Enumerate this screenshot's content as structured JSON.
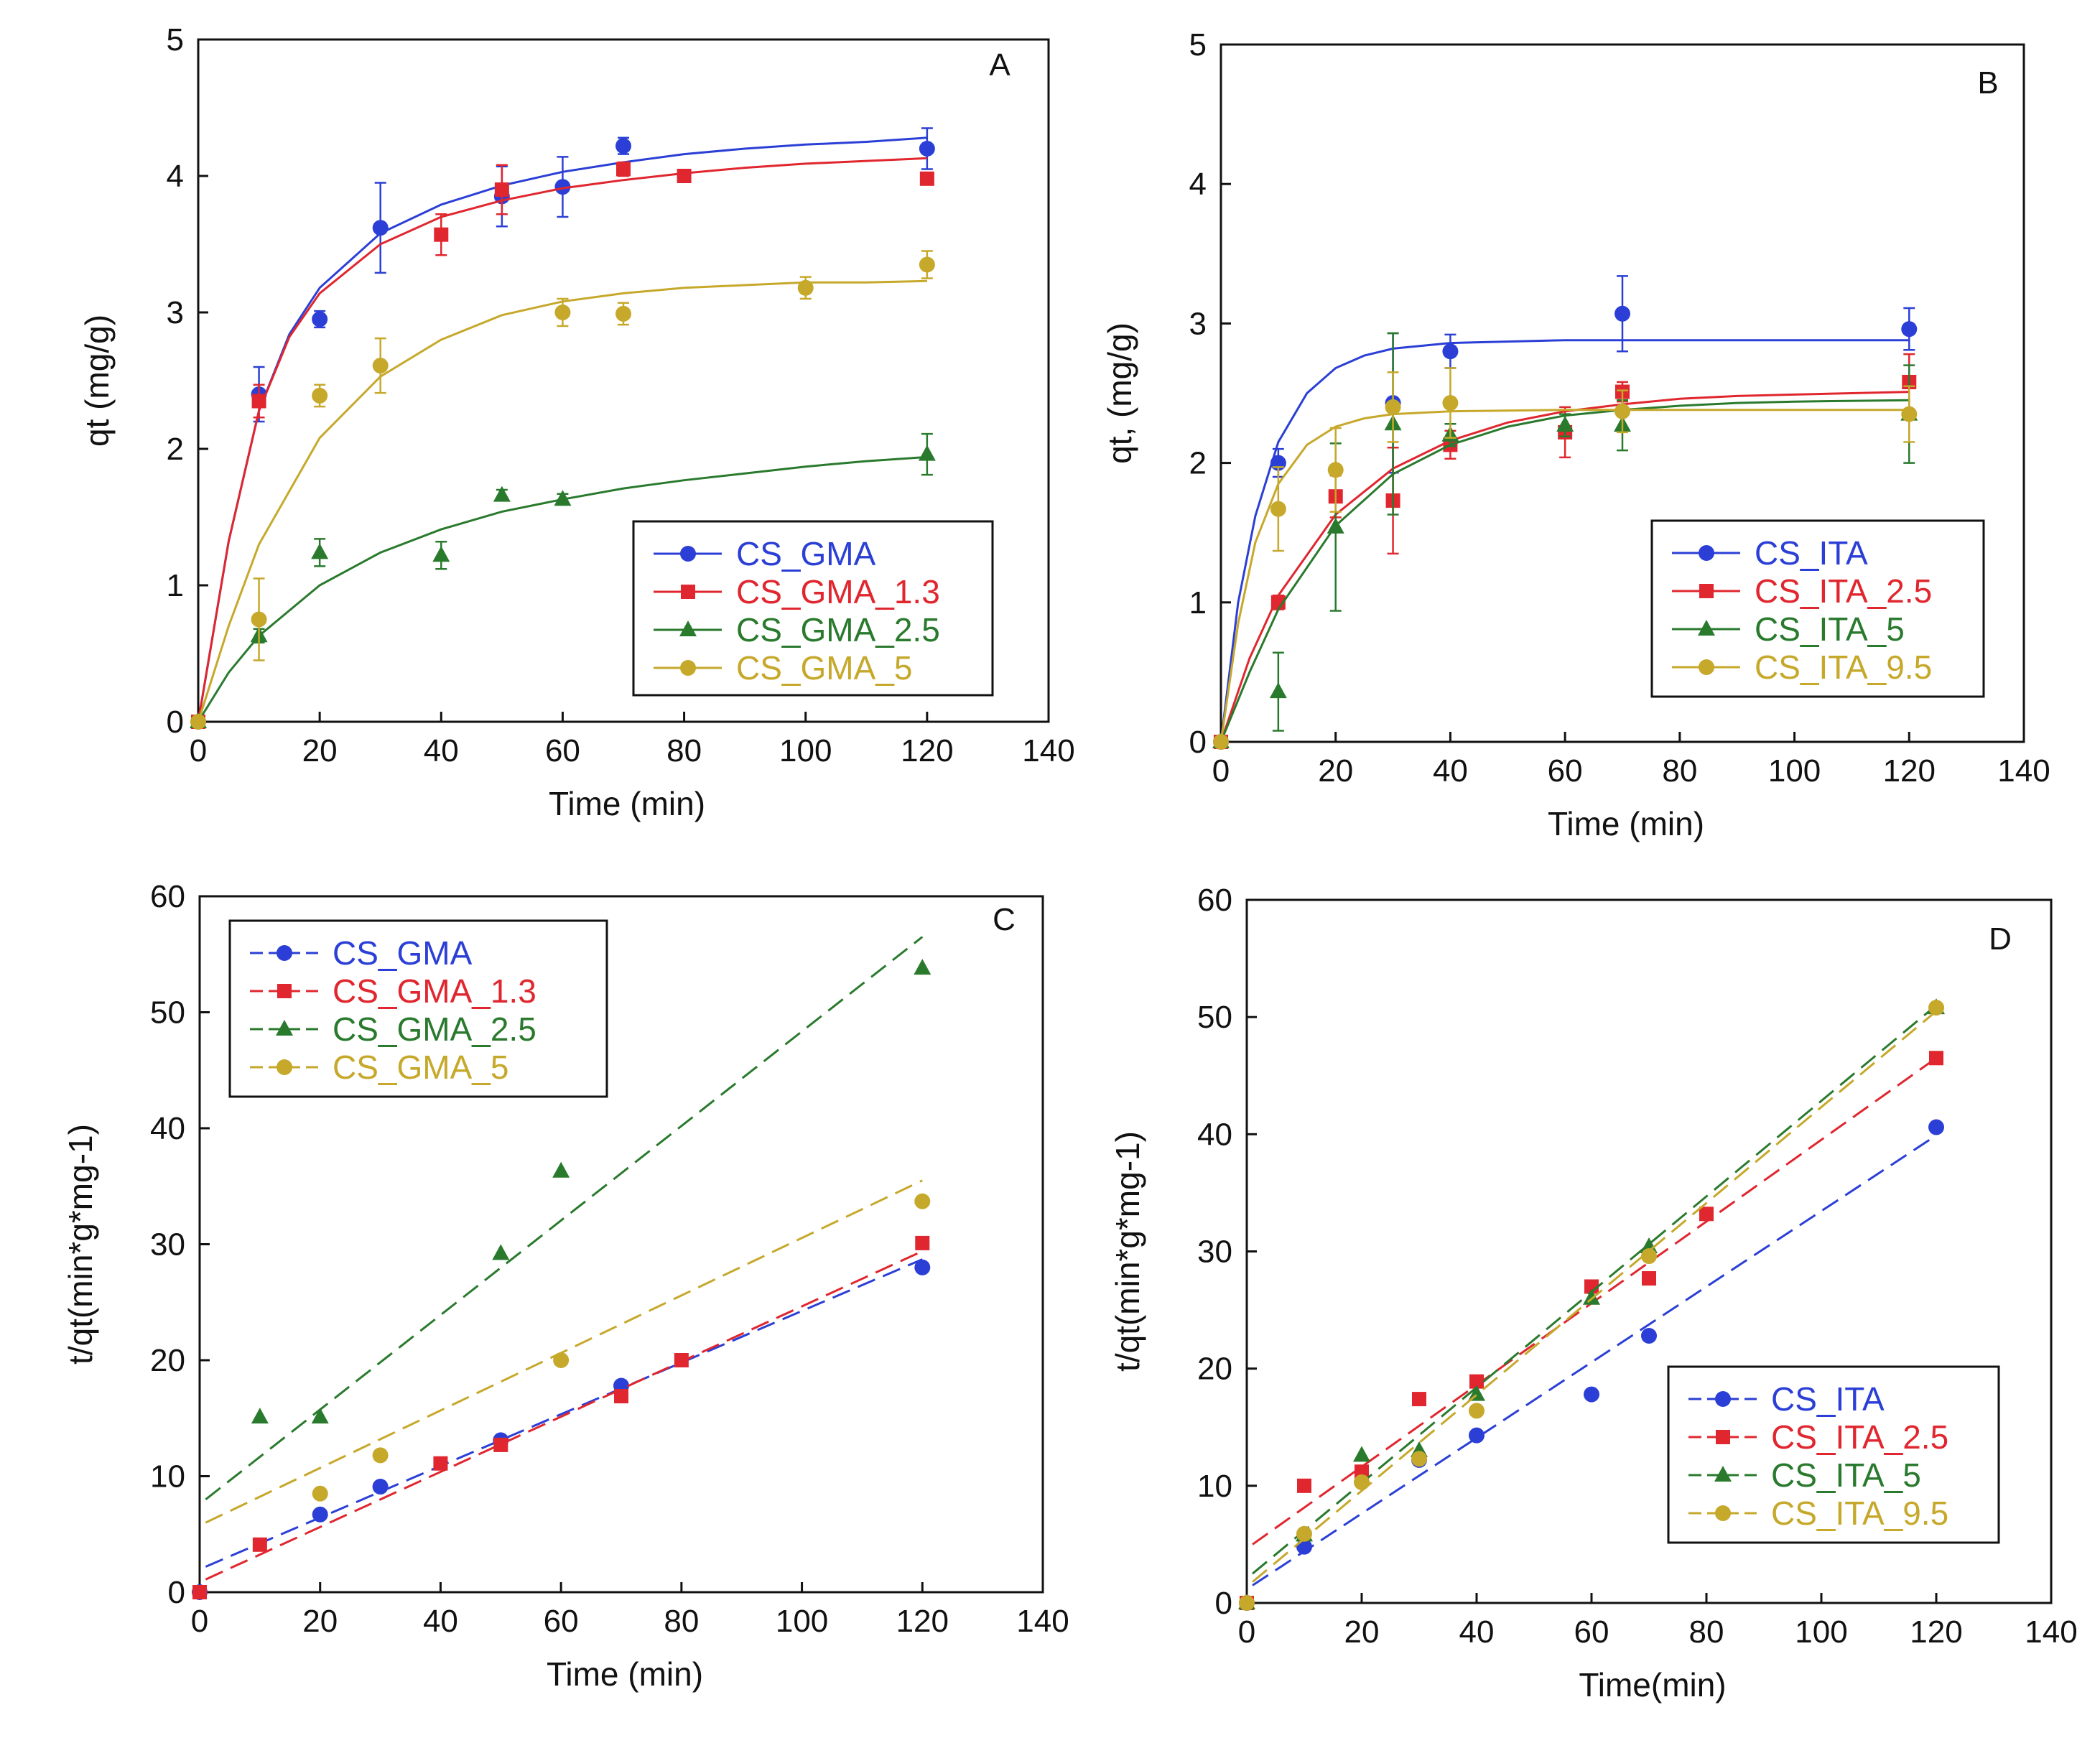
{
  "chart_data": [
    {
      "panel": "A",
      "type": "scatter",
      "xlabel": "Time (min)",
      "ylabel": "qt (mg/g)",
      "xlim": [
        0,
        140
      ],
      "ylim": [
        0,
        5
      ],
      "xticks": [
        0,
        20,
        40,
        60,
        80,
        100,
        120,
        140
      ],
      "yticks": [
        0,
        1,
        2,
        3,
        4,
        5
      ],
      "legend_position": "lower-right",
      "fit": "curve",
      "series": [
        {
          "name": "CS_GMA",
          "color": "#2b3fd6",
          "marker": "circle",
          "x": [
            0,
            10,
            20,
            30,
            50,
            60,
            70,
            120
          ],
          "y": [
            0,
            2.4,
            2.95,
            3.62,
            3.85,
            3.92,
            4.22,
            4.2
          ],
          "err": [
            0,
            0.2,
            0.06,
            0.33,
            0.22,
            0.22,
            0.06,
            0.15
          ],
          "curve": [
            [
              0,
              0
            ],
            [
              5,
              1.32
            ],
            [
              10,
              2.28
            ],
            [
              15,
              2.84
            ],
            [
              20,
              3.18
            ],
            [
              30,
              3.58
            ],
            [
              40,
              3.79
            ],
            [
              50,
              3.93
            ],
            [
              60,
              4.03
            ],
            [
              70,
              4.1
            ],
            [
              80,
              4.16
            ],
            [
              90,
              4.2
            ],
            [
              100,
              4.23
            ],
            [
              110,
              4.25
            ],
            [
              120,
              4.28
            ]
          ]
        },
        {
          "name": "CS_GMA_1.3",
          "color": "#e0262e",
          "marker": "square",
          "x": [
            0,
            10,
            40,
            50,
            70,
            80,
            120
          ],
          "y": [
            0,
            2.35,
            3.57,
            3.9,
            4.05,
            4.0,
            3.98
          ],
          "err": [
            0,
            0.12,
            0.15,
            0.18,
            0.05,
            0,
            0
          ],
          "curve": [
            [
              0,
              0
            ],
            [
              5,
              1.32
            ],
            [
              10,
              2.28
            ],
            [
              15,
              2.82
            ],
            [
              20,
              3.14
            ],
            [
              30,
              3.5
            ],
            [
              40,
              3.7
            ],
            [
              50,
              3.82
            ],
            [
              60,
              3.91
            ],
            [
              70,
              3.97
            ],
            [
              80,
              4.02
            ],
            [
              90,
              4.06
            ],
            [
              100,
              4.09
            ],
            [
              110,
              4.11
            ],
            [
              120,
              4.13
            ]
          ]
        },
        {
          "name": "CS_GMA_2.5",
          "color": "#2a7a2e",
          "marker": "triangle",
          "x": [
            0,
            10,
            20,
            40,
            50,
            60,
            120
          ],
          "y": [
            0,
            0.63,
            1.24,
            1.22,
            1.66,
            1.63,
            1.96
          ],
          "err": [
            0,
            0.05,
            0.1,
            0.1,
            0.04,
            0.04,
            0.15
          ],
          "curve": [
            [
              0,
              0
            ],
            [
              5,
              0.36
            ],
            [
              10,
              0.63
            ],
            [
              20,
              1.0
            ],
            [
              30,
              1.24
            ],
            [
              40,
              1.41
            ],
            [
              50,
              1.54
            ],
            [
              60,
              1.63
            ],
            [
              70,
              1.71
            ],
            [
              80,
              1.77
            ],
            [
              90,
              1.82
            ],
            [
              100,
              1.87
            ],
            [
              110,
              1.91
            ],
            [
              120,
              1.94
            ]
          ]
        },
        {
          "name": "CS_GMA_5",
          "color": "#c6a82b",
          "marker": "circle",
          "x": [
            0,
            10,
            20,
            30,
            60,
            70,
            100,
            120
          ],
          "y": [
            0,
            0.75,
            2.39,
            2.61,
            3.0,
            2.99,
            3.18,
            3.35
          ],
          "err": [
            0,
            0.3,
            0.08,
            0.2,
            0.1,
            0.08,
            0.08,
            0.1
          ],
          "curve": [
            [
              0,
              0
            ],
            [
              5,
              0.7
            ],
            [
              10,
              1.3
            ],
            [
              20,
              2.08
            ],
            [
              30,
              2.53
            ],
            [
              40,
              2.8
            ],
            [
              50,
              2.98
            ],
            [
              60,
              3.08
            ],
            [
              70,
              3.14
            ],
            [
              80,
              3.18
            ],
            [
              90,
              3.2
            ],
            [
              100,
              3.22
            ],
            [
              110,
              3.22
            ],
            [
              120,
              3.23
            ]
          ]
        }
      ]
    },
    {
      "panel": "B",
      "type": "scatter",
      "xlabel": "Time (min)",
      "ylabel": "qt, (mg/g)",
      "xlim": [
        0,
        140
      ],
      "ylim": [
        0,
        5
      ],
      "xticks": [
        0,
        20,
        40,
        60,
        80,
        100,
        120,
        140
      ],
      "yticks": [
        0,
        1,
        2,
        3,
        4,
        5
      ],
      "legend_position": "lower-right",
      "fit": "curve",
      "series": [
        {
          "name": "CS_ITA",
          "color": "#2b3fd6",
          "marker": "circle",
          "x": [
            0,
            10,
            30,
            40,
            70,
            120
          ],
          "y": [
            0,
            2.0,
            2.43,
            2.8,
            3.07,
            2.96
          ],
          "err": [
            0,
            0.1,
            0.5,
            0.12,
            0.27,
            0.15
          ],
          "curve": [
            [
              0,
              0
            ],
            [
              3,
              1.0
            ],
            [
              6,
              1.62
            ],
            [
              10,
              2.15
            ],
            [
              15,
              2.5
            ],
            [
              20,
              2.68
            ],
            [
              25,
              2.77
            ],
            [
              30,
              2.82
            ],
            [
              40,
              2.86
            ],
            [
              50,
              2.87
            ],
            [
              60,
              2.88
            ],
            [
              80,
              2.88
            ],
            [
              100,
              2.88
            ],
            [
              120,
              2.88
            ]
          ]
        },
        {
          "name": "CS_ITA_2.5",
          "color": "#e0262e",
          "marker": "square",
          "x": [
            0,
            10,
            20,
            30,
            40,
            60,
            70,
            120
          ],
          "y": [
            0,
            1.0,
            1.76,
            1.73,
            2.13,
            2.22,
            2.51,
            2.58
          ],
          "err": [
            0,
            0.05,
            0.15,
            0.38,
            0.1,
            0.18,
            0.07,
            0.2
          ],
          "curve": [
            [
              0,
              0
            ],
            [
              5,
              0.6
            ],
            [
              10,
              1.05
            ],
            [
              20,
              1.63
            ],
            [
              30,
              1.96
            ],
            [
              40,
              2.16
            ],
            [
              50,
              2.29
            ],
            [
              60,
              2.37
            ],
            [
              70,
              2.42
            ],
            [
              80,
              2.46
            ],
            [
              90,
              2.48
            ],
            [
              100,
              2.49
            ],
            [
              110,
              2.5
            ],
            [
              120,
              2.51
            ]
          ]
        },
        {
          "name": "CS_ITA_5",
          "color": "#2a7a2e",
          "marker": "triangle",
          "x": [
            0,
            10,
            20,
            30,
            40,
            60,
            70,
            120
          ],
          "y": [
            0,
            0.36,
            1.54,
            2.28,
            2.2,
            2.27,
            2.27,
            2.35
          ],
          "err": [
            0,
            0.28,
            0.6,
            0.65,
            0.08,
            0.08,
            0.18,
            0.35
          ],
          "curve": [
            [
              0,
              0
            ],
            [
              5,
              0.5
            ],
            [
              10,
              0.95
            ],
            [
              20,
              1.55
            ],
            [
              30,
              1.92
            ],
            [
              40,
              2.13
            ],
            [
              50,
              2.26
            ],
            [
              60,
              2.34
            ],
            [
              70,
              2.38
            ],
            [
              80,
              2.41
            ],
            [
              90,
              2.43
            ],
            [
              100,
              2.44
            ],
            [
              120,
              2.45
            ]
          ]
        },
        {
          "name": "CS_ITA_9.5",
          "color": "#c6a82b",
          "marker": "circle",
          "x": [
            0,
            10,
            20,
            30,
            40,
            70,
            120
          ],
          "y": [
            0,
            1.67,
            1.95,
            2.4,
            2.43,
            2.37,
            2.35
          ],
          "err": [
            0,
            0.3,
            0.3,
            0.25,
            0.25,
            0.15,
            0.2
          ],
          "curve": [
            [
              0,
              0
            ],
            [
              3,
              0.85
            ],
            [
              6,
              1.43
            ],
            [
              10,
              1.85
            ],
            [
              15,
              2.13
            ],
            [
              20,
              2.26
            ],
            [
              25,
              2.32
            ],
            [
              30,
              2.35
            ],
            [
              40,
              2.37
            ],
            [
              60,
              2.38
            ],
            [
              120,
              2.38
            ]
          ]
        }
      ]
    },
    {
      "panel": "C",
      "type": "scatter",
      "xlabel": "Time (min)",
      "ylabel": "t/qt(min*g*mg-1)",
      "xlim": [
        0,
        140
      ],
      "ylim": [
        0,
        60
      ],
      "xticks": [
        0,
        20,
        40,
        60,
        80,
        100,
        120,
        140
      ],
      "yticks": [
        0,
        10,
        20,
        30,
        40,
        50,
        60
      ],
      "legend_position": "upper-left",
      "fit": "dashed-line",
      "series": [
        {
          "name": "CS_GMA",
          "color": "#2b3fd6",
          "marker": "circle",
          "x": [
            0,
            20,
            30,
            50,
            70,
            120
          ],
          "y": [
            0,
            6.7,
            9.1,
            13.1,
            17.8,
            28.0
          ],
          "line": [
            [
              1,
              2.2
            ],
            [
              120,
              28.7
            ]
          ]
        },
        {
          "name": "CS_GMA_1.3",
          "color": "#e0262e",
          "marker": "square",
          "x": [
            0,
            10,
            40,
            50,
            70,
            80,
            120
          ],
          "y": [
            0,
            4.1,
            11.1,
            12.7,
            16.9,
            20.0,
            30.1
          ],
          "line": [
            [
              1,
              1.1
            ],
            [
              120,
              29.4
            ]
          ]
        },
        {
          "name": "CS_GMA_2.5",
          "color": "#2a7a2e",
          "marker": "triangle",
          "x": [
            10,
            20,
            50,
            60,
            120
          ],
          "y": [
            15.1,
            15.1,
            29.2,
            36.3,
            53.8
          ],
          "line": [
            [
              1,
              8.0
            ],
            [
              120,
              56.5
            ]
          ]
        },
        {
          "name": "CS_GMA_5",
          "color": "#c6a82b",
          "marker": "circle",
          "x": [
            20,
            30,
            60,
            120
          ],
          "y": [
            8.5,
            11.8,
            20.0,
            33.7
          ],
          "line": [
            [
              1,
              6.0
            ],
            [
              120,
              35.5
            ]
          ]
        }
      ]
    },
    {
      "panel": "D",
      "type": "scatter",
      "xlabel": "Time(min)",
      "ylabel": "t/qt(min*g*mg-1)",
      "xlim": [
        0,
        140
      ],
      "ylim": [
        0,
        60
      ],
      "xticks": [
        0,
        20,
        40,
        60,
        80,
        100,
        120,
        140
      ],
      "yticks": [
        0,
        10,
        20,
        30,
        40,
        50,
        60
      ],
      "legend_position": "lower-right",
      "fit": "dashed-line",
      "series": [
        {
          "name": "CS_ITA",
          "color": "#2b3fd6",
          "marker": "circle",
          "x": [
            0,
            10,
            30,
            40,
            60,
            70,
            120
          ],
          "y": [
            0,
            4.8,
            12.2,
            14.3,
            17.8,
            22.8,
            40.6
          ],
          "line": [
            [
              1,
              1.5
            ],
            [
              120,
              39.9
            ]
          ]
        },
        {
          "name": "CS_ITA_2.5",
          "color": "#e0262e",
          "marker": "square",
          "x": [
            0,
            10,
            20,
            30,
            40,
            60,
            70,
            80,
            120
          ],
          "y": [
            0,
            10.0,
            11.2,
            17.4,
            18.9,
            27.0,
            27.7,
            33.2,
            46.5
          ],
          "line": [
            [
              1,
              5.0
            ],
            [
              120,
              46.5
            ]
          ]
        },
        {
          "name": "CS_ITA_5",
          "color": "#2a7a2e",
          "marker": "triangle",
          "x": [
            0,
            10,
            20,
            30,
            40,
            60,
            70,
            120
          ],
          "y": [
            0,
            5.8,
            12.6,
            13.0,
            17.8,
            26.0,
            30.4,
            50.8
          ],
          "line": [
            [
              1,
              2.5
            ],
            [
              120,
              51.0
            ]
          ]
        },
        {
          "name": "CS_ITA_9.5",
          "color": "#c6a82b",
          "marker": "circle",
          "x": [
            0,
            10,
            20,
            30,
            40,
            70,
            120
          ],
          "y": [
            0,
            5.9,
            10.3,
            12.3,
            16.4,
            29.6,
            50.8
          ],
          "line": [
            [
              1,
              1.8
            ],
            [
              120,
              50.5
            ]
          ]
        }
      ]
    }
  ]
}
